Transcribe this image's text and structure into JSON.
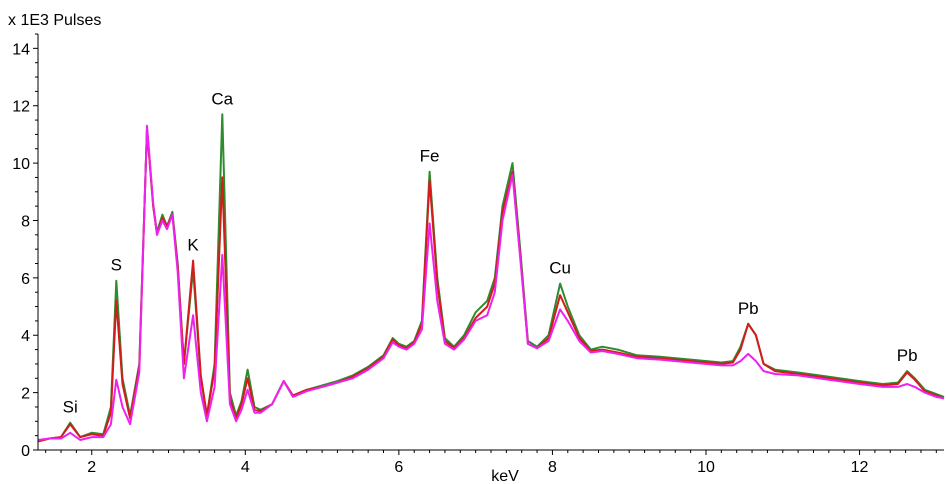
{
  "chart_data": {
    "type": "line",
    "title": "",
    "xlabel": "keV",
    "ylabel": "x 1E3 Pulses",
    "xlim": [
      1.3,
      13.1
    ],
    "ylim": [
      0,
      14.5
    ],
    "x_ticks": [
      2,
      4,
      6,
      8,
      10,
      12
    ],
    "y_ticks": [
      0,
      2,
      4,
      6,
      8,
      10,
      12,
      14
    ],
    "grid": false,
    "legend": "none",
    "series": [
      {
        "color": "#2e8b2e",
        "points": [
          [
            1.3,
            0.3
          ],
          [
            1.45,
            0.4
          ],
          [
            1.6,
            0.45
          ],
          [
            1.72,
            0.95
          ],
          [
            1.85,
            0.45
          ],
          [
            2.0,
            0.6
          ],
          [
            2.15,
            0.55
          ],
          [
            2.25,
            1.5
          ],
          [
            2.32,
            5.9
          ],
          [
            2.4,
            2.5
          ],
          [
            2.5,
            1.2
          ],
          [
            2.62,
            3.0
          ],
          [
            2.72,
            11.2
          ],
          [
            2.8,
            8.5
          ],
          [
            2.85,
            7.6
          ],
          [
            2.92,
            8.2
          ],
          [
            2.98,
            7.8
          ],
          [
            3.05,
            8.3
          ],
          [
            3.12,
            6.5
          ],
          [
            3.2,
            3.0
          ],
          [
            3.32,
            6.3
          ],
          [
            3.42,
            2.5
          ],
          [
            3.5,
            1.2
          ],
          [
            3.6,
            3.0
          ],
          [
            3.7,
            11.7
          ],
          [
            3.8,
            2.0
          ],
          [
            3.88,
            1.2
          ],
          [
            3.95,
            1.7
          ],
          [
            4.03,
            2.8
          ],
          [
            4.12,
            1.5
          ],
          [
            4.2,
            1.4
          ],
          [
            4.35,
            1.6
          ],
          [
            4.5,
            2.4
          ],
          [
            4.62,
            1.9
          ],
          [
            4.8,
            2.1
          ],
          [
            5.0,
            2.25
          ],
          [
            5.2,
            2.4
          ],
          [
            5.4,
            2.6
          ],
          [
            5.6,
            2.9
          ],
          [
            5.8,
            3.3
          ],
          [
            5.92,
            3.9
          ],
          [
            6.0,
            3.7
          ],
          [
            6.1,
            3.6
          ],
          [
            6.2,
            3.8
          ],
          [
            6.3,
            4.5
          ],
          [
            6.4,
            9.7
          ],
          [
            6.5,
            6.0
          ],
          [
            6.6,
            3.9
          ],
          [
            6.72,
            3.6
          ],
          [
            6.85,
            4.0
          ],
          [
            7.0,
            4.8
          ],
          [
            7.15,
            5.2
          ],
          [
            7.25,
            6.0
          ],
          [
            7.35,
            8.5
          ],
          [
            7.48,
            10.0
          ],
          [
            7.58,
            7.0
          ],
          [
            7.68,
            3.8
          ],
          [
            7.8,
            3.6
          ],
          [
            7.95,
            4.0
          ],
          [
            8.1,
            5.8
          ],
          [
            8.2,
            5.0
          ],
          [
            8.35,
            4.0
          ],
          [
            8.5,
            3.5
          ],
          [
            8.65,
            3.6
          ],
          [
            8.85,
            3.5
          ],
          [
            9.1,
            3.3
          ],
          [
            9.4,
            3.25
          ],
          [
            9.8,
            3.15
          ],
          [
            10.2,
            3.05
          ],
          [
            10.35,
            3.1
          ],
          [
            10.45,
            3.6
          ],
          [
            10.55,
            4.4
          ],
          [
            10.65,
            4.0
          ],
          [
            10.75,
            3.0
          ],
          [
            10.9,
            2.8
          ],
          [
            11.2,
            2.7
          ],
          [
            11.6,
            2.55
          ],
          [
            12.0,
            2.4
          ],
          [
            12.3,
            2.3
          ],
          [
            12.5,
            2.35
          ],
          [
            12.62,
            2.75
          ],
          [
            12.72,
            2.5
          ],
          [
            12.85,
            2.1
          ],
          [
            13.0,
            1.95
          ],
          [
            13.1,
            1.85
          ]
        ]
      },
      {
        "color": "#d41c1c",
        "points": [
          [
            1.3,
            0.3
          ],
          [
            1.45,
            0.4
          ],
          [
            1.6,
            0.45
          ],
          [
            1.72,
            0.9
          ],
          [
            1.85,
            0.45
          ],
          [
            2.0,
            0.55
          ],
          [
            2.15,
            0.5
          ],
          [
            2.25,
            1.3
          ],
          [
            2.32,
            5.2
          ],
          [
            2.4,
            2.3
          ],
          [
            2.5,
            1.1
          ],
          [
            2.62,
            2.9
          ],
          [
            2.72,
            11.2
          ],
          [
            2.8,
            8.5
          ],
          [
            2.85,
            7.5
          ],
          [
            2.92,
            8.1
          ],
          [
            2.98,
            7.8
          ],
          [
            3.05,
            8.2
          ],
          [
            3.12,
            6.4
          ],
          [
            3.2,
            3.0
          ],
          [
            3.32,
            6.6
          ],
          [
            3.42,
            2.6
          ],
          [
            3.5,
            1.2
          ],
          [
            3.6,
            2.8
          ],
          [
            3.7,
            9.5
          ],
          [
            3.8,
            1.8
          ],
          [
            3.88,
            1.1
          ],
          [
            3.95,
            1.6
          ],
          [
            4.03,
            2.5
          ],
          [
            4.12,
            1.4
          ],
          [
            4.2,
            1.35
          ],
          [
            4.35,
            1.6
          ],
          [
            4.5,
            2.4
          ],
          [
            4.62,
            1.9
          ],
          [
            4.8,
            2.1
          ],
          [
            5.0,
            2.2
          ],
          [
            5.2,
            2.35
          ],
          [
            5.4,
            2.55
          ],
          [
            5.6,
            2.85
          ],
          [
            5.8,
            3.25
          ],
          [
            5.92,
            3.85
          ],
          [
            6.0,
            3.65
          ],
          [
            6.1,
            3.55
          ],
          [
            6.2,
            3.75
          ],
          [
            6.3,
            4.4
          ],
          [
            6.4,
            9.4
          ],
          [
            6.5,
            5.8
          ],
          [
            6.6,
            3.8
          ],
          [
            6.72,
            3.55
          ],
          [
            6.85,
            3.9
          ],
          [
            7.0,
            4.6
          ],
          [
            7.15,
            5.0
          ],
          [
            7.25,
            5.8
          ],
          [
            7.35,
            8.3
          ],
          [
            7.48,
            9.7
          ],
          [
            7.58,
            6.8
          ],
          [
            7.68,
            3.7
          ],
          [
            7.8,
            3.55
          ],
          [
            7.95,
            3.9
          ],
          [
            8.1,
            5.4
          ],
          [
            8.2,
            4.8
          ],
          [
            8.35,
            3.9
          ],
          [
            8.5,
            3.45
          ],
          [
            8.65,
            3.5
          ],
          [
            8.85,
            3.4
          ],
          [
            9.1,
            3.25
          ],
          [
            9.4,
            3.2
          ],
          [
            9.8,
            3.1
          ],
          [
            10.2,
            3.0
          ],
          [
            10.35,
            3.05
          ],
          [
            10.45,
            3.5
          ],
          [
            10.55,
            4.4
          ],
          [
            10.65,
            4.0
          ],
          [
            10.75,
            3.0
          ],
          [
            10.9,
            2.75
          ],
          [
            11.2,
            2.65
          ],
          [
            11.6,
            2.5
          ],
          [
            12.0,
            2.35
          ],
          [
            12.3,
            2.25
          ],
          [
            12.5,
            2.3
          ],
          [
            12.62,
            2.7
          ],
          [
            12.72,
            2.45
          ],
          [
            12.85,
            2.05
          ],
          [
            13.0,
            1.9
          ],
          [
            13.1,
            1.8
          ]
        ]
      },
      {
        "color": "#ee22ee",
        "points": [
          [
            1.3,
            0.35
          ],
          [
            1.45,
            0.4
          ],
          [
            1.6,
            0.4
          ],
          [
            1.72,
            0.6
          ],
          [
            1.85,
            0.35
          ],
          [
            2.0,
            0.45
          ],
          [
            2.15,
            0.45
          ],
          [
            2.25,
            0.9
          ],
          [
            2.32,
            2.45
          ],
          [
            2.4,
            1.5
          ],
          [
            2.5,
            0.9
          ],
          [
            2.62,
            2.7
          ],
          [
            2.72,
            11.3
          ],
          [
            2.8,
            8.6
          ],
          [
            2.85,
            7.5
          ],
          [
            2.92,
            8.0
          ],
          [
            2.98,
            7.7
          ],
          [
            3.05,
            8.2
          ],
          [
            3.12,
            6.2
          ],
          [
            3.2,
            2.5
          ],
          [
            3.32,
            4.7
          ],
          [
            3.42,
            2.0
          ],
          [
            3.5,
            1.0
          ],
          [
            3.6,
            2.2
          ],
          [
            3.7,
            6.8
          ],
          [
            3.8,
            1.6
          ],
          [
            3.88,
            1.0
          ],
          [
            3.95,
            1.4
          ],
          [
            4.03,
            2.1
          ],
          [
            4.12,
            1.3
          ],
          [
            4.2,
            1.3
          ],
          [
            4.35,
            1.6
          ],
          [
            4.5,
            2.4
          ],
          [
            4.62,
            1.85
          ],
          [
            4.8,
            2.05
          ],
          [
            5.0,
            2.2
          ],
          [
            5.2,
            2.35
          ],
          [
            5.4,
            2.5
          ],
          [
            5.6,
            2.8
          ],
          [
            5.8,
            3.2
          ],
          [
            5.92,
            3.75
          ],
          [
            6.0,
            3.6
          ],
          [
            6.1,
            3.5
          ],
          [
            6.2,
            3.7
          ],
          [
            6.3,
            4.2
          ],
          [
            6.4,
            7.9
          ],
          [
            6.5,
            5.2
          ],
          [
            6.6,
            3.7
          ],
          [
            6.72,
            3.5
          ],
          [
            6.85,
            3.85
          ],
          [
            7.0,
            4.5
          ],
          [
            7.15,
            4.7
          ],
          [
            7.25,
            5.5
          ],
          [
            7.35,
            8.0
          ],
          [
            7.48,
            9.6
          ],
          [
            7.58,
            6.7
          ],
          [
            7.68,
            3.7
          ],
          [
            7.8,
            3.55
          ],
          [
            7.95,
            3.8
          ],
          [
            8.1,
            4.9
          ],
          [
            8.2,
            4.5
          ],
          [
            8.35,
            3.8
          ],
          [
            8.5,
            3.4
          ],
          [
            8.65,
            3.45
          ],
          [
            8.85,
            3.35
          ],
          [
            9.1,
            3.2
          ],
          [
            9.4,
            3.15
          ],
          [
            9.8,
            3.05
          ],
          [
            10.2,
            2.95
          ],
          [
            10.35,
            2.95
          ],
          [
            10.45,
            3.1
          ],
          [
            10.55,
            3.35
          ],
          [
            10.65,
            3.1
          ],
          [
            10.75,
            2.75
          ],
          [
            10.9,
            2.65
          ],
          [
            11.2,
            2.6
          ],
          [
            11.6,
            2.45
          ],
          [
            12.0,
            2.3
          ],
          [
            12.3,
            2.2
          ],
          [
            12.5,
            2.2
          ],
          [
            12.62,
            2.3
          ],
          [
            12.72,
            2.2
          ],
          [
            12.85,
            2.0
          ],
          [
            13.0,
            1.85
          ],
          [
            13.1,
            1.8
          ]
        ]
      }
    ],
    "annotations": [
      {
        "text": "Si",
        "x": 1.72,
        "y": 0.95
      },
      {
        "text": "S",
        "x": 2.32,
        "y": 5.9
      },
      {
        "text": "K",
        "x": 3.32,
        "y": 6.6
      },
      {
        "text": "Ca",
        "x": 3.7,
        "y": 11.7
      },
      {
        "text": "Fe",
        "x": 6.4,
        "y": 9.7
      },
      {
        "text": "Cu",
        "x": 8.1,
        "y": 5.8
      },
      {
        "text": "Pb",
        "x": 10.55,
        "y": 4.4
      },
      {
        "text": "Pb",
        "x": 12.62,
        "y": 2.75
      }
    ]
  }
}
